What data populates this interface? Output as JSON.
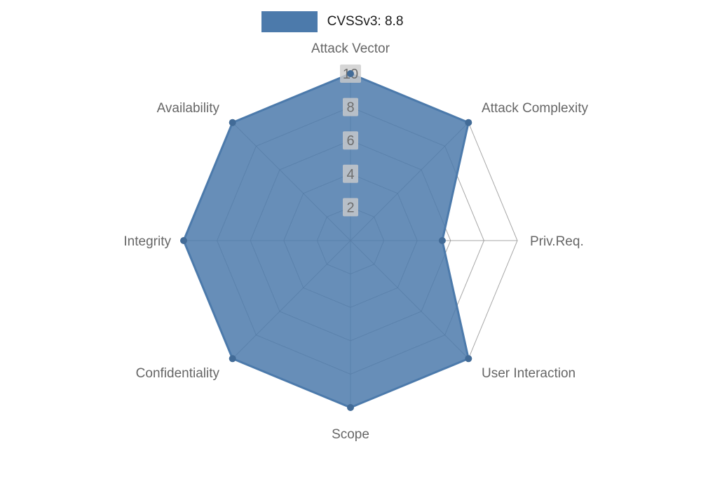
{
  "chart_data": {
    "type": "radar",
    "title": "CVSSv3: 8.8",
    "categories": [
      "Attack Vector",
      "Attack Complexity",
      "Priv.Req.",
      "User Interaction",
      "Scope",
      "Confidentiality",
      "Integrity",
      "Availability"
    ],
    "series": [
      {
        "name": "CVSSv3: 8.8",
        "values": [
          10,
          10,
          5.5,
          10,
          10,
          10,
          10,
          10
        ]
      }
    ],
    "radial_ticks": [
      2,
      4,
      6,
      8,
      10
    ],
    "rlim": [
      0,
      10
    ],
    "grid": true,
    "legend_position": "top-center",
    "colors": {
      "fill": "#4c7aab",
      "stroke": "#4c7aab",
      "marker": "#426b97",
      "grid": "#8a8a8a",
      "axis_label": "#666666",
      "tick_label": "#6e6e6e",
      "tick_bg": "#cccccc",
      "legend_text": "#1a1a1a",
      "background": "#ffffff"
    }
  }
}
